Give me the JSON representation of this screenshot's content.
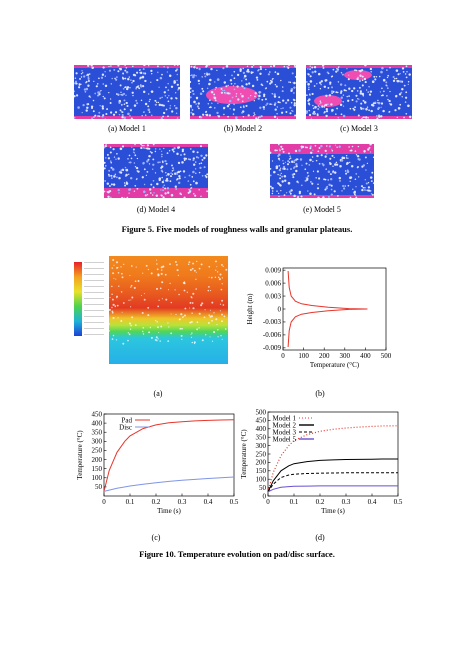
{
  "figure5": {
    "caption": "Figure 5. Five models of roughness walls and granular plateaus.",
    "panels": [
      {
        "label": "(a) Model 1"
      },
      {
        "label": "(b) Model 2"
      },
      {
        "label": "(c) Model 3"
      },
      {
        "label": "(d) Model 4"
      },
      {
        "label": "(e) Model 5"
      }
    ],
    "colors": {
      "particles": "#2a4fd6",
      "wall": "#e23ca6",
      "plateau": "#f04db2"
    }
  },
  "figure10": {
    "caption": "Figure 10. Temperature evolution on pad/disc surface.",
    "labels": {
      "a": "(a)",
      "b": "(b)",
      "c": "(c)",
      "d": "(d)"
    }
  },
  "chart_data": [
    {
      "id": "b",
      "type": "line",
      "xlabel": "Temperature (°C)",
      "ylabel": "Height (m)",
      "xlim": [
        0,
        500
      ],
      "ylim": [
        -0.0095,
        0.0095
      ],
      "xticks": [
        0,
        100,
        200,
        300,
        400,
        500
      ],
      "yticks": [
        0.009,
        0.006,
        0.003,
        0,
        -0.003,
        -0.006,
        -0.009
      ],
      "ytick_labels": [
        "0.009",
        "0.006",
        "0.003",
        "0",
        "-0.003",
        "-0.006",
        "-0.009"
      ],
      "color": "#e8362b",
      "series": [
        {
          "x": [
            25,
            30,
            40,
            60,
            90,
            140,
            220,
            320,
            410
          ],
          "y": [
            0.0088,
            0.005,
            0.003,
            0.0018,
            0.0012,
            0.0008,
            0.0004,
            0.0001,
            0.0
          ]
        },
        {
          "x": [
            25,
            30,
            40,
            60,
            90,
            140,
            220,
            320,
            410
          ],
          "y": [
            -0.0088,
            -0.005,
            -0.003,
            -0.0018,
            -0.0012,
            -0.0008,
            -0.0004,
            -0.0001,
            0.0
          ]
        }
      ]
    },
    {
      "id": "c",
      "type": "line",
      "xlabel": "Time (s)",
      "ylabel": "Temperature (°C)",
      "xlim": [
        0,
        0.5
      ],
      "ylim": [
        0,
        450
      ],
      "xticks": [
        0,
        0.1,
        0.2,
        0.3,
        0.4,
        0.5
      ],
      "yticks": [
        50,
        100,
        150,
        200,
        250,
        300,
        350,
        400,
        450
      ],
      "legend_position": "top-left",
      "series": [
        {
          "name": "Pad",
          "color": "#e8362b",
          "x": [
            0,
            0.02,
            0.05,
            0.08,
            0.1,
            0.15,
            0.2,
            0.25,
            0.3,
            0.35,
            0.4,
            0.45,
            0.5
          ],
          "y": [
            25,
            140,
            240,
            300,
            330,
            370,
            390,
            402,
            408,
            412,
            415,
            417,
            418
          ]
        },
        {
          "name": "Disc",
          "color": "#7f95e6",
          "x": [
            0,
            0.05,
            0.1,
            0.15,
            0.2,
            0.25,
            0.3,
            0.35,
            0.4,
            0.45,
            0.5
          ],
          "y": [
            25,
            42,
            55,
            65,
            73,
            80,
            86,
            91,
            96,
            100,
            104
          ]
        }
      ]
    },
    {
      "id": "d",
      "type": "line",
      "xlabel": "Time (s)",
      "ylabel": "Temperature (°C)",
      "xlim": [
        0,
        0.5
      ],
      "ylim": [
        0,
        500
      ],
      "xticks": [
        0,
        0.1,
        0.2,
        0.3,
        0.4,
        0.5
      ],
      "yticks": [
        0,
        50,
        100,
        150,
        200,
        250,
        300,
        350,
        400,
        450,
        500
      ],
      "legend_position": "top-left",
      "series": [
        {
          "name": "Model 1",
          "color": "#e8362b",
          "style": "dotted",
          "x": [
            0,
            0.02,
            0.05,
            0.08,
            0.1,
            0.15,
            0.2,
            0.25,
            0.3,
            0.35,
            0.4,
            0.45,
            0.5
          ],
          "y": [
            25,
            140,
            240,
            300,
            330,
            365,
            385,
            397,
            405,
            410,
            414,
            417,
            418
          ]
        },
        {
          "name": "Model 2",
          "color": "#000000",
          "style": "solid",
          "x": [
            0,
            0.02,
            0.05,
            0.08,
            0.1,
            0.15,
            0.2,
            0.25,
            0.3,
            0.35,
            0.4,
            0.45,
            0.5
          ],
          "y": [
            25,
            90,
            150,
            180,
            192,
            205,
            212,
            215,
            217,
            218,
            219,
            220,
            220
          ]
        },
        {
          "name": "Model 3",
          "color": "#000000",
          "style": "dashed",
          "x": [
            0,
            0.02,
            0.05,
            0.08,
            0.1,
            0.15,
            0.2,
            0.25,
            0.3,
            0.35,
            0.4,
            0.45,
            0.5
          ],
          "y": [
            25,
            70,
            110,
            125,
            130,
            134,
            136,
            137,
            138,
            138,
            138,
            138,
            138
          ]
        },
        {
          "name": "Model 5",
          "color": "#6a4fd0",
          "style": "solid",
          "x": [
            0,
            0.02,
            0.05,
            0.08,
            0.1,
            0.15,
            0.2,
            0.3,
            0.4,
            0.5
          ],
          "y": [
            25,
            40,
            52,
            56,
            58,
            59,
            60,
            60,
            60,
            60
          ]
        }
      ]
    }
  ]
}
